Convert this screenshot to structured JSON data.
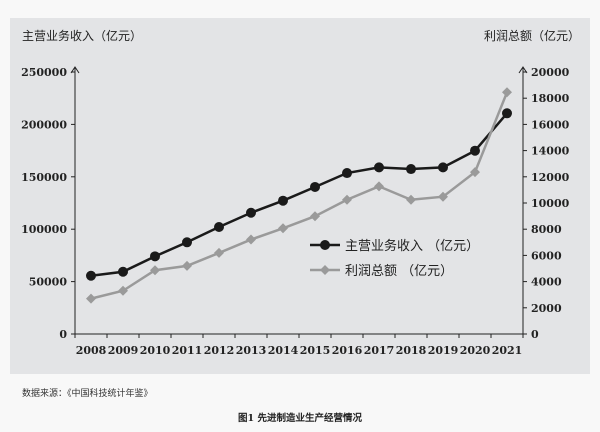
{
  "chart_data": {
    "type": "line",
    "categories": [
      "2008",
      "2009",
      "2010",
      "2011",
      "2012",
      "2013",
      "2014",
      "2015",
      "2016",
      "2017",
      "2018",
      "2019",
      "2020",
      "2021"
    ],
    "left_axis": {
      "label": "主营业务收入（亿元）",
      "ylim": [
        0,
        250000
      ],
      "ticks": [
        "0",
        "50000",
        "100000",
        "150000",
        "200000",
        "250000"
      ],
      "tick_values": [
        0,
        50000,
        100000,
        150000,
        200000,
        250000
      ]
    },
    "right_axis": {
      "label": "利润总额（亿元）",
      "ylim": [
        0,
        20000
      ],
      "ticks": [
        "0",
        "2000",
        "4000",
        "6000",
        "8000",
        "10000",
        "12000",
        "14000",
        "16000",
        "18000",
        "20000"
      ],
      "tick_values": [
        0,
        2000,
        4000,
        6000,
        8000,
        10000,
        12000,
        14000,
        16000,
        18000,
        20000
      ]
    },
    "series": [
      {
        "name": "主营业务收入 （亿元）",
        "axis": "left",
        "marker": "circle",
        "color": "#1a1a1a",
        "values": [
          55600,
          59400,
          74100,
          87500,
          102100,
          115700,
          127200,
          140300,
          153600,
          159000,
          157400,
          159000,
          174900,
          210600
        ]
      },
      {
        "name": "利润总额 （亿元）",
        "axis": "right",
        "marker": "diamond",
        "color": "#9a9a9a",
        "values": [
          2700,
          3300,
          4870,
          5200,
          6190,
          7210,
          8070,
          8990,
          10250,
          11270,
          10250,
          10480,
          12360,
          18450
        ]
      }
    ],
    "legend": "center-right",
    "grid": false
  },
  "source": "数据来源：《中国科技统计年鉴》",
  "caption": "图1  先进制造业生产经营情况"
}
